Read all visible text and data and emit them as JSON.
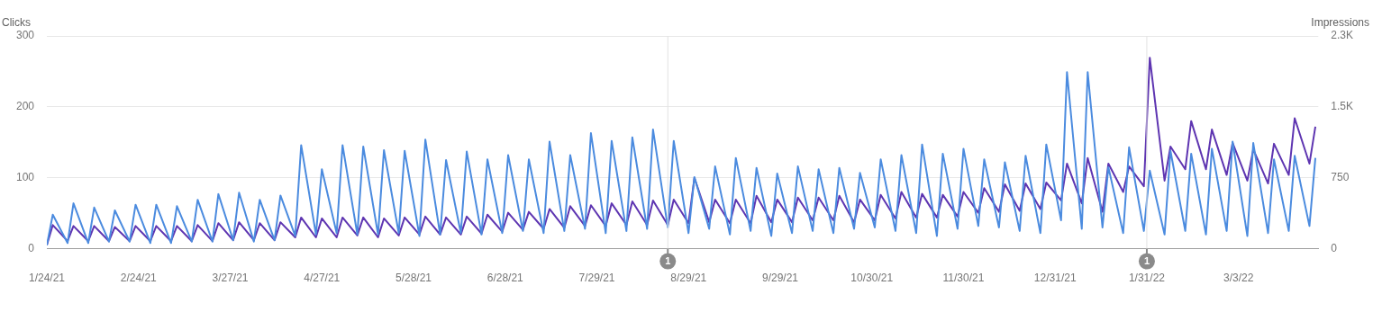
{
  "chart_data": {
    "type": "line",
    "ylabel": "Clicks",
    "y2label": "Impressions",
    "legend": false,
    "grid": "y",
    "marker": "none",
    "line_style": "solid",
    "x": [
      "2021-01-24",
      "2021-01-26",
      "2021-01-31",
      "2021-02-02",
      "2021-02-07",
      "2021-02-09",
      "2021-02-14",
      "2021-02-16",
      "2021-02-21",
      "2021-02-23",
      "2021-02-28",
      "2021-03-02",
      "2021-03-07",
      "2021-03-09",
      "2021-03-14",
      "2021-03-16",
      "2021-03-21",
      "2021-03-23",
      "2021-03-28",
      "2021-03-30",
      "2021-04-04",
      "2021-04-06",
      "2021-04-11",
      "2021-04-13",
      "2021-04-18",
      "2021-04-20",
      "2021-04-25",
      "2021-04-27",
      "2021-05-02",
      "2021-05-04",
      "2021-05-09",
      "2021-05-11",
      "2021-05-16",
      "2021-05-18",
      "2021-05-23",
      "2021-05-25",
      "2021-05-30",
      "2021-06-01",
      "2021-06-06",
      "2021-06-08",
      "2021-06-13",
      "2021-06-15",
      "2021-06-20",
      "2021-06-22",
      "2021-06-27",
      "2021-06-29",
      "2021-07-04",
      "2021-07-06",
      "2021-07-11",
      "2021-07-13",
      "2021-07-18",
      "2021-07-20",
      "2021-07-25",
      "2021-07-27",
      "2021-08-01",
      "2021-08-03",
      "2021-08-08",
      "2021-08-10",
      "2021-08-15",
      "2021-08-17",
      "2021-08-22",
      "2021-08-24",
      "2021-08-29",
      "2021-08-31",
      "2021-09-05",
      "2021-09-07",
      "2021-09-12",
      "2021-09-14",
      "2021-09-19",
      "2021-09-21",
      "2021-09-26",
      "2021-09-28",
      "2021-10-03",
      "2021-10-05",
      "2021-10-10",
      "2021-10-12",
      "2021-10-17",
      "2021-10-19",
      "2021-10-24",
      "2021-10-26",
      "2021-10-31",
      "2021-11-02",
      "2021-11-07",
      "2021-11-09",
      "2021-11-14",
      "2021-11-16",
      "2021-11-21",
      "2021-11-23",
      "2021-11-28",
      "2021-11-30",
      "2021-12-05",
      "2021-12-07",
      "2021-12-12",
      "2021-12-14",
      "2021-12-19",
      "2021-12-21",
      "2021-12-26",
      "2021-12-28",
      "2022-01-02",
      "2022-01-04",
      "2022-01-09",
      "2022-01-11",
      "2022-01-16",
      "2022-01-18",
      "2022-01-23",
      "2022-01-25",
      "2022-01-30",
      "2022-02-01",
      "2022-02-06",
      "2022-02-08",
      "2022-02-13",
      "2022-02-15",
      "2022-02-20",
      "2022-02-22",
      "2022-02-27",
      "2022-03-01",
      "2022-03-06",
      "2022-03-08",
      "2022-03-13",
      "2022-03-15",
      "2022-03-20",
      "2022-03-22",
      "2022-03-27",
      "2022-03-29"
    ],
    "series": [
      {
        "color": "#4b8bdf",
        "values": [
          5,
          48,
          8,
          64,
          8,
          58,
          10,
          54,
          10,
          62,
          8,
          62,
          8,
          60,
          10,
          69,
          10,
          77,
          12,
          79,
          10,
          69,
          12,
          75,
          18,
          146,
          20,
          112,
          22,
          146,
          20,
          144,
          20,
          139,
          22,
          138,
          18,
          154,
          20,
          125,
          22,
          137,
          20,
          126,
          22,
          132,
          25,
          126,
          22,
          151,
          25,
          132,
          28,
          163,
          22,
          152,
          25,
          157,
          28,
          168,
          30,
          152,
          22,
          101,
          28,
          116,
          20,
          128,
          25,
          114,
          18,
          106,
          22,
          116,
          25,
          112,
          22,
          114,
          28,
          107,
          30,
          126,
          25,
          132,
          22,
          147,
          18,
          134,
          28,
          141,
          32,
          126,
          30,
          122,
          25,
          131,
          22,
          147,
          40,
          249,
          28,
          249,
          30,
          115,
          22,
          143,
          25,
          110,
          20,
          138,
          25,
          134,
          20,
          141,
          25,
          151,
          18,
          149,
          22,
          126,
          25,
          131,
          32,
          128
        ]
      },
      {
        "color": "#5e35b1",
        "axis": "y2",
        "values": [
          40,
          250,
          80,
          240,
          80,
          240,
          80,
          230,
          80,
          240,
          80,
          240,
          80,
          240,
          80,
          250,
          80,
          270,
          90,
          280,
          90,
          270,
          90,
          280,
          120,
          330,
          120,
          320,
          120,
          330,
          140,
          330,
          120,
          320,
          140,
          330,
          150,
          340,
          150,
          330,
          150,
          340,
          160,
          360,
          180,
          380,
          200,
          390,
          210,
          420,
          220,
          450,
          240,
          460,
          240,
          480,
          250,
          500,
          250,
          510,
          250,
          520,
          270,
          750,
          280,
          520,
          270,
          520,
          270,
          560,
          280,
          520,
          280,
          540,
          300,
          540,
          300,
          560,
          280,
          520,
          300,
          570,
          320,
          600,
          330,
          580,
          330,
          570,
          340,
          600,
          380,
          640,
          390,
          680,
          400,
          690,
          420,
          700,
          510,
          900,
          480,
          960,
          390,
          900,
          600,
          870,
          660,
          2020,
          720,
          1080,
          840,
          1350,
          840,
          1260,
          780,
          1120,
          720,
          1050,
          690,
          1110,
          780,
          1380,
          900,
          1290
        ]
      }
    ],
    "xlim": [
      "2021-01-24",
      "2022-03-30"
    ],
    "xticks": [
      {
        "value": "2021-01-24",
        "label": "1/24/21"
      },
      {
        "value": "2021-02-24",
        "label": "2/24/21"
      },
      {
        "value": "2021-03-27",
        "label": "3/27/21"
      },
      {
        "value": "2021-04-27",
        "label": "4/27/21"
      },
      {
        "value": "2021-05-28",
        "label": "5/28/21"
      },
      {
        "value": "2021-06-28",
        "label": "6/28/21"
      },
      {
        "value": "2021-07-29",
        "label": "7/29/21"
      },
      {
        "value": "2021-08-29",
        "label": "8/29/21"
      },
      {
        "value": "2021-09-29",
        "label": "9/29/21"
      },
      {
        "value": "2021-10-30",
        "label": "10/30/21"
      },
      {
        "value": "2021-11-30",
        "label": "11/30/21"
      },
      {
        "value": "2021-12-31",
        "label": "12/31/21"
      },
      {
        "value": "2022-01-31",
        "label": "1/31/22"
      },
      {
        "value": "2022-03-03",
        "label": "3/3/22"
      }
    ],
    "ylim": [
      0,
      300
    ],
    "yticks": [
      0,
      100,
      200,
      300
    ],
    "y2lim": [
      0,
      2250
    ],
    "y2ticks": [
      0,
      750,
      {
        "value": 1500,
        "label": "1.5K"
      },
      {
        "value": 2250,
        "label": "2.3K"
      }
    ],
    "ref_lines": [
      {
        "axis": "x",
        "value": "2021-08-22",
        "label": "1"
      },
      {
        "axis": "x",
        "value": "2022-01-31",
        "label": "1"
      }
    ]
  }
}
